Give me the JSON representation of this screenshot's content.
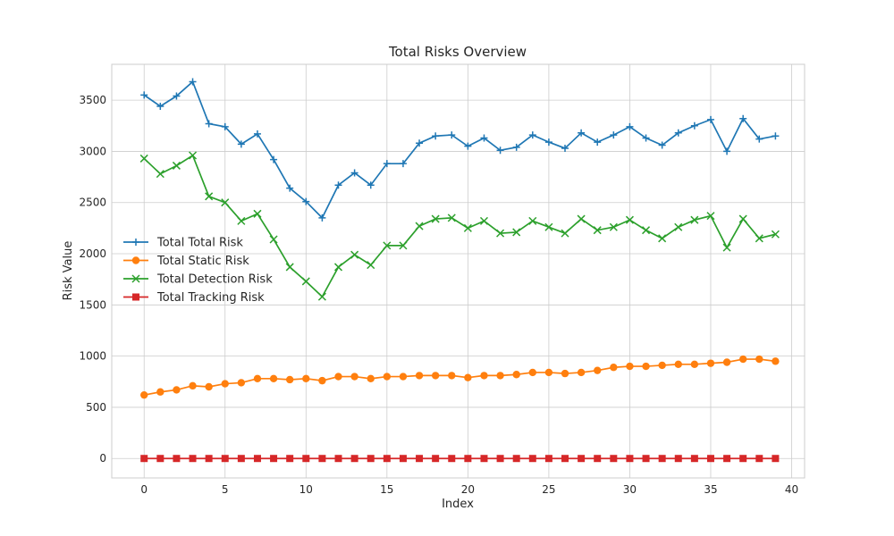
{
  "chart_data": {
    "type": "line",
    "title": "Total Risks Overview",
    "xlabel": "Index",
    "ylabel": "Risk Value",
    "xlim": [
      -2,
      40.8
    ],
    "ylim": [
      -190,
      3850
    ],
    "xticks": [
      0,
      5,
      10,
      15,
      20,
      25,
      30,
      35,
      40
    ],
    "yticks": [
      0,
      500,
      1000,
      1500,
      2000,
      2500,
      3000,
      3500
    ],
    "grid": true,
    "legend_position": "center-left",
    "x": [
      0,
      1,
      2,
      3,
      4,
      5,
      6,
      7,
      8,
      9,
      10,
      11,
      12,
      13,
      14,
      15,
      16,
      17,
      18,
      19,
      20,
      21,
      22,
      23,
      24,
      25,
      26,
      27,
      28,
      29,
      30,
      31,
      32,
      33,
      34,
      35,
      36,
      37,
      38,
      39
    ],
    "series": [
      {
        "name": "Total Total Risk",
        "color": "#1f77b4",
        "marker": "plus",
        "values": [
          3550,
          3440,
          3540,
          3680,
          3270,
          3240,
          3070,
          3170,
          2920,
          2640,
          2510,
          2350,
          2670,
          2790,
          2670,
          2880,
          2880,
          3080,
          3150,
          3160,
          3050,
          3130,
          3010,
          3040,
          3160,
          3090,
          3030,
          3180,
          3090,
          3160,
          3240,
          3130,
          3060,
          3180,
          3250,
          3310,
          3000,
          3320,
          3120,
          3150
        ]
      },
      {
        "name": "Total Static Risk",
        "color": "#ff7f0e",
        "marker": "circle",
        "values": [
          620,
          650,
          670,
          710,
          700,
          730,
          740,
          780,
          780,
          770,
          780,
          760,
          800,
          800,
          780,
          800,
          800,
          810,
          810,
          810,
          790,
          810,
          810,
          820,
          840,
          840,
          830,
          840,
          860,
          890,
          900,
          900,
          910,
          920,
          920,
          930,
          940,
          970,
          970,
          950
        ]
      },
      {
        "name": "Total Detection Risk",
        "color": "#2ca02c",
        "marker": "x",
        "values": [
          2930,
          2780,
          2860,
          2960,
          2560,
          2500,
          2320,
          2390,
          2140,
          1870,
          1730,
          1580,
          1870,
          1990,
          1890,
          2080,
          2080,
          2270,
          2340,
          2350,
          2250,
          2320,
          2200,
          2210,
          2320,
          2260,
          2200,
          2340,
          2230,
          2260,
          2330,
          2230,
          2150,
          2260,
          2330,
          2370,
          2060,
          2340,
          2150,
          2190
        ]
      },
      {
        "name": "Total Tracking Risk",
        "color": "#d62728",
        "marker": "square",
        "values": [
          0,
          0,
          0,
          0,
          0,
          0,
          0,
          0,
          0,
          0,
          0,
          0,
          0,
          0,
          0,
          0,
          0,
          0,
          0,
          0,
          0,
          0,
          0,
          0,
          0,
          0,
          0,
          0,
          0,
          0,
          0,
          0,
          0,
          0,
          0,
          0,
          0,
          0,
          0,
          0
        ]
      }
    ]
  }
}
